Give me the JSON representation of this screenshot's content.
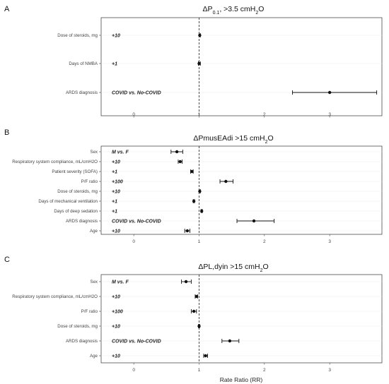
{
  "figure": {
    "xlabel": "Rate Ratio (RR)"
  },
  "chart_data": [
    {
      "type": "forest",
      "letter": "A",
      "title_parts": [
        "ΔP",
        "0.1",
        ", >3.5 cmH",
        "2",
        "O"
      ],
      "xlim": [
        -0.5,
        3.8
      ],
      "xticks": [
        "0",
        "1",
        "2",
        "3"
      ],
      "reference_x": 1,
      "rows": [
        {
          "label": "Dose of steroids, mg",
          "unit": "+10",
          "rr": 1.01,
          "lo": 1.0,
          "hi": 1.02
        },
        {
          "label": "Days of NMBA",
          "unit": "+1",
          "rr": 1.0,
          "lo": 0.99,
          "hi": 1.02
        },
        {
          "label": "ARDS diagnosis",
          "unit": "COVID vs. No-COVID",
          "rr": 3.0,
          "lo": 2.43,
          "hi": 3.72
        }
      ]
    },
    {
      "type": "forest",
      "letter": "B",
      "title_parts": [
        "ΔPmusEAdi >15 cmH",
        "2",
        "O"
      ],
      "xlim": [
        -0.5,
        3.8
      ],
      "xticks": [
        "0",
        "1",
        "2",
        "3"
      ],
      "reference_x": 1,
      "rows": [
        {
          "label": "Sex",
          "unit": "M vs. F",
          "rr": 0.66,
          "lo": 0.57,
          "hi": 0.75
        },
        {
          "label": "Respiratory system compliance, mL/cmH2O",
          "unit": "+10",
          "rr": 0.71,
          "lo": 0.68,
          "hi": 0.74
        },
        {
          "label": "Patient severity (SOFA)",
          "unit": "+1",
          "rr": 0.89,
          "lo": 0.87,
          "hi": 0.91
        },
        {
          "label": "P/F ratio",
          "unit": "+100",
          "rr": 1.41,
          "lo": 1.32,
          "hi": 1.52
        },
        {
          "label": "Dose of steroids, mg",
          "unit": "+10",
          "rr": 1.01,
          "lo": 1.0,
          "hi": 1.02
        },
        {
          "label": "Days of mechanical ventilation",
          "unit": "+1",
          "rr": 0.92,
          "lo": 0.91,
          "hi": 0.93
        },
        {
          "label": "Days of deep sedation",
          "unit": "+1",
          "rr": 1.04,
          "lo": 1.03,
          "hi": 1.05
        },
        {
          "label": "ARDS diagnosis",
          "unit": "COVID vs. No-COVID",
          "rr": 1.84,
          "lo": 1.58,
          "hi": 2.15
        },
        {
          "label": "Age",
          "unit": "+10",
          "rr": 0.82,
          "lo": 0.78,
          "hi": 0.86
        }
      ]
    },
    {
      "type": "forest",
      "letter": "C",
      "title_parts": [
        "ΔPL,dyin >15 cmH",
        "2",
        "O"
      ],
      "xlim": [
        -0.5,
        3.8
      ],
      "xticks": [
        "0",
        "1",
        "2",
        "3"
      ],
      "reference_x": 1,
      "rows": [
        {
          "label": "Sex",
          "unit": "M vs. F",
          "rr": 0.8,
          "lo": 0.73,
          "hi": 0.88
        },
        {
          "label": "Respiratory system compliance, mL/cmH2O",
          "unit": "+10",
          "rr": 0.96,
          "lo": 0.94,
          "hi": 0.98
        },
        {
          "label": "P/F ratio",
          "unit": "+100",
          "rr": 0.92,
          "lo": 0.88,
          "hi": 0.96
        },
        {
          "label": "Dose of steroids, mg",
          "unit": "+10",
          "rr": 1.0,
          "lo": 0.99,
          "hi": 1.01
        },
        {
          "label": "ARDS diagnosis",
          "unit": "COVID vs. No-COVID",
          "rr": 1.47,
          "lo": 1.35,
          "hi": 1.61
        },
        {
          "label": "Age",
          "unit": "+10",
          "rr": 1.1,
          "lo": 1.07,
          "hi": 1.13
        }
      ]
    }
  ]
}
